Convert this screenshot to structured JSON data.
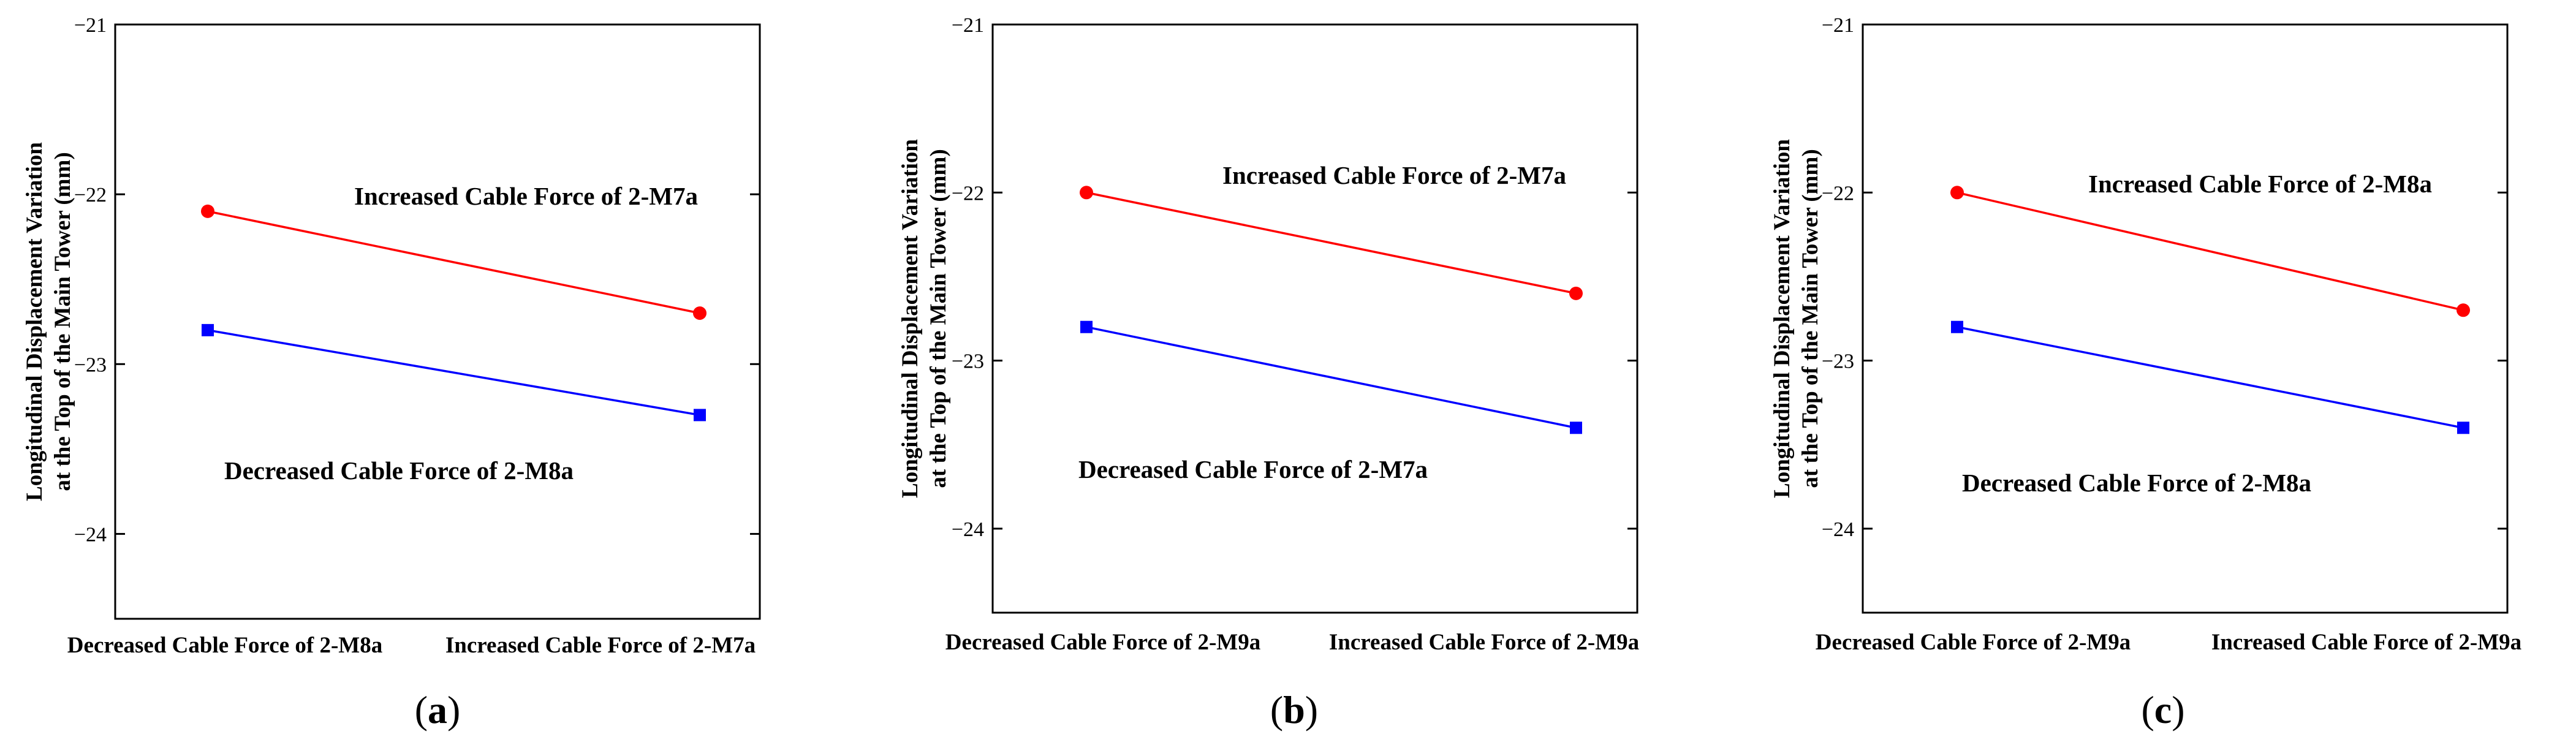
{
  "chart_data": [
    {
      "type": "line",
      "panel_label": "a",
      "categories": [
        "Decreased Cable Force of 2-M8a",
        "Increased Cable Force of 2-M7a"
      ],
      "series": [
        {
          "name": "Increased Cable Force of 2-M7a",
          "values": [
            -22.1,
            -22.7
          ],
          "color": "#ff0000",
          "marker": "circle"
        },
        {
          "name": "Decreased Cable Force of 2-M8a",
          "values": [
            -22.8,
            -23.3
          ],
          "color": "#0000ff",
          "marker": "square"
        }
      ],
      "ylabel": [
        "Longitudinal Displacement Variation",
        "at the Top of the Main Tower (mm)"
      ],
      "ylim": [
        -24.5,
        -21
      ],
      "yticks": [
        "−21",
        "−22",
        "−23",
        "−24"
      ],
      "ytick_values": [
        -21,
        -22,
        -23,
        -24
      ]
    },
    {
      "type": "line",
      "panel_label": "b",
      "categories": [
        "Decreased Cable Force of 2-M9a",
        "Increased Cable Force of 2-M9a"
      ],
      "series": [
        {
          "name": "Increased Cable Force of 2-M7a",
          "values": [
            -22.0,
            -22.6
          ],
          "color": "#ff0000",
          "marker": "circle"
        },
        {
          "name": "Decreased Cable Force of 2-M7a",
          "values": [
            -22.8,
            -23.4
          ],
          "color": "#0000ff",
          "marker": "square"
        }
      ],
      "ylabel": [
        "Longitudinal Displacement Variation",
        "at the Top of the Main Tower (mm)"
      ],
      "ylim": [
        -24.5,
        -21
      ],
      "yticks": [
        "−21",
        "−22",
        "−23",
        "−24"
      ],
      "ytick_values": [
        -21,
        -22,
        -23,
        -24
      ]
    },
    {
      "type": "line",
      "panel_label": "c",
      "categories": [
        "Decreased Cable Force of 2-M9a",
        "Increased Cable Force of 2-M9a"
      ],
      "series": [
        {
          "name": "Increased Cable Force of 2-M8a",
          "values": [
            -22.0,
            -22.7
          ],
          "color": "#ff0000",
          "marker": "circle"
        },
        {
          "name": "Decreased Cable Force of 2-M8a",
          "values": [
            -22.8,
            -23.4
          ],
          "color": "#0000ff",
          "marker": "square"
        }
      ],
      "ylabel": [
        "Longitudinal Displacement Variation",
        "at the Top of the Main Tower (mm)"
      ],
      "ylim": [
        -24.5,
        -21
      ],
      "yticks": [
        "−21",
        "−22",
        "−23",
        "−24"
      ],
      "ytick_values": [
        -21,
        -22,
        -23,
        -24
      ]
    }
  ]
}
